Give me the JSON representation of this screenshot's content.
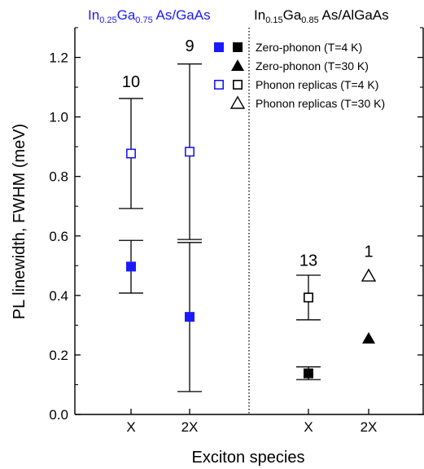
{
  "chart_data": {
    "type": "scatter",
    "ylabel": "PL linewidth, FWHM (meV)",
    "xlabel": "Exciton species",
    "ylim": [
      0.0,
      1.3
    ],
    "yticks": [
      "0.0",
      "0.2",
      "0.4",
      "0.6",
      "0.8",
      "1.0",
      "1.2"
    ],
    "ytick_values": [
      0.0,
      0.2,
      0.4,
      0.6,
      0.8,
      1.0,
      1.2
    ],
    "panels": [
      {
        "title": {
          "el1": "In",
          "sub1": "0.25",
          "el2": "Ga",
          "sub2": "0.75",
          "rest": " As/GaAs"
        },
        "title_color": "#1a1aff",
        "categories": [
          "X",
          "2X"
        ]
      },
      {
        "title": {
          "el1": "In",
          "sub1": "0.15",
          "el2": "Ga",
          "sub2": "0.85",
          "rest": " As/AlGaAs"
        },
        "title_color": "#000000",
        "categories": [
          "X",
          "2X"
        ]
      }
    ],
    "divider": "dotted vertical line between panels",
    "series": [
      {
        "name": "Zero-phonon (T=4 K)",
        "marker": "filled-square",
        "points": [
          {
            "panel": 0,
            "category": "X",
            "y": 0.497,
            "err_low": 0.408,
            "err_high": 0.585
          },
          {
            "panel": 0,
            "category": "2X",
            "y": 0.328,
            "err_low": 0.077,
            "err_high": 0.578
          },
          {
            "panel": 1,
            "category": "X",
            "y": 0.138,
            "err_low": 0.117,
            "err_high": 0.16
          }
        ]
      },
      {
        "name": "Zero-phonon (T=30 K)",
        "marker": "filled-triangle",
        "points": [
          {
            "panel": 1,
            "category": "2X",
            "y": 0.255
          }
        ]
      },
      {
        "name": "Phonon replicas (T=4 K)",
        "marker": "open-square",
        "points": [
          {
            "panel": 0,
            "category": "X",
            "y": 0.877,
            "err_low": 0.692,
            "err_high": 1.062
          },
          {
            "panel": 0,
            "category": "2X",
            "y": 0.883,
            "err_low": 0.588,
            "err_high": 1.178
          },
          {
            "panel": 1,
            "category": "X",
            "y": 0.393,
            "err_low": 0.318,
            "err_high": 0.468
          }
        ]
      },
      {
        "name": "Phonon replicas (T=30 K)",
        "marker": "open-triangle",
        "points": [
          {
            "panel": 1,
            "category": "2X",
            "y": 0.465
          }
        ]
      }
    ],
    "annotations": [
      {
        "text": "10",
        "panel": 0,
        "category": "X",
        "y": 1.1
      },
      {
        "text": "9",
        "panel": 0,
        "category": "2X",
        "y": 1.22
      },
      {
        "text": "13",
        "panel": 1,
        "category": "X",
        "y": 0.5
      },
      {
        "text": "1",
        "panel": 1,
        "category": "2X",
        "y": 0.53
      }
    ],
    "legend": {
      "placement": "top-right",
      "entries": [
        {
          "label": "Zero-phonon (T=4 K)",
          "markers": [
            "filled-square-blue",
            "filled-square-black"
          ]
        },
        {
          "label": "Zero-phonon (T=30 K)",
          "markers": [
            "filled-triangle-black"
          ]
        },
        {
          "label": "Phonon replicas (T=4 K)",
          "markers": [
            "open-square-blue",
            "open-square-black"
          ]
        },
        {
          "label": "Phonon replicas (T=30 K)",
          "markers": [
            "open-triangle-black"
          ]
        }
      ]
    },
    "colors": {
      "blue": "#1a1aff",
      "black": "#000000"
    },
    "grid": false
  }
}
